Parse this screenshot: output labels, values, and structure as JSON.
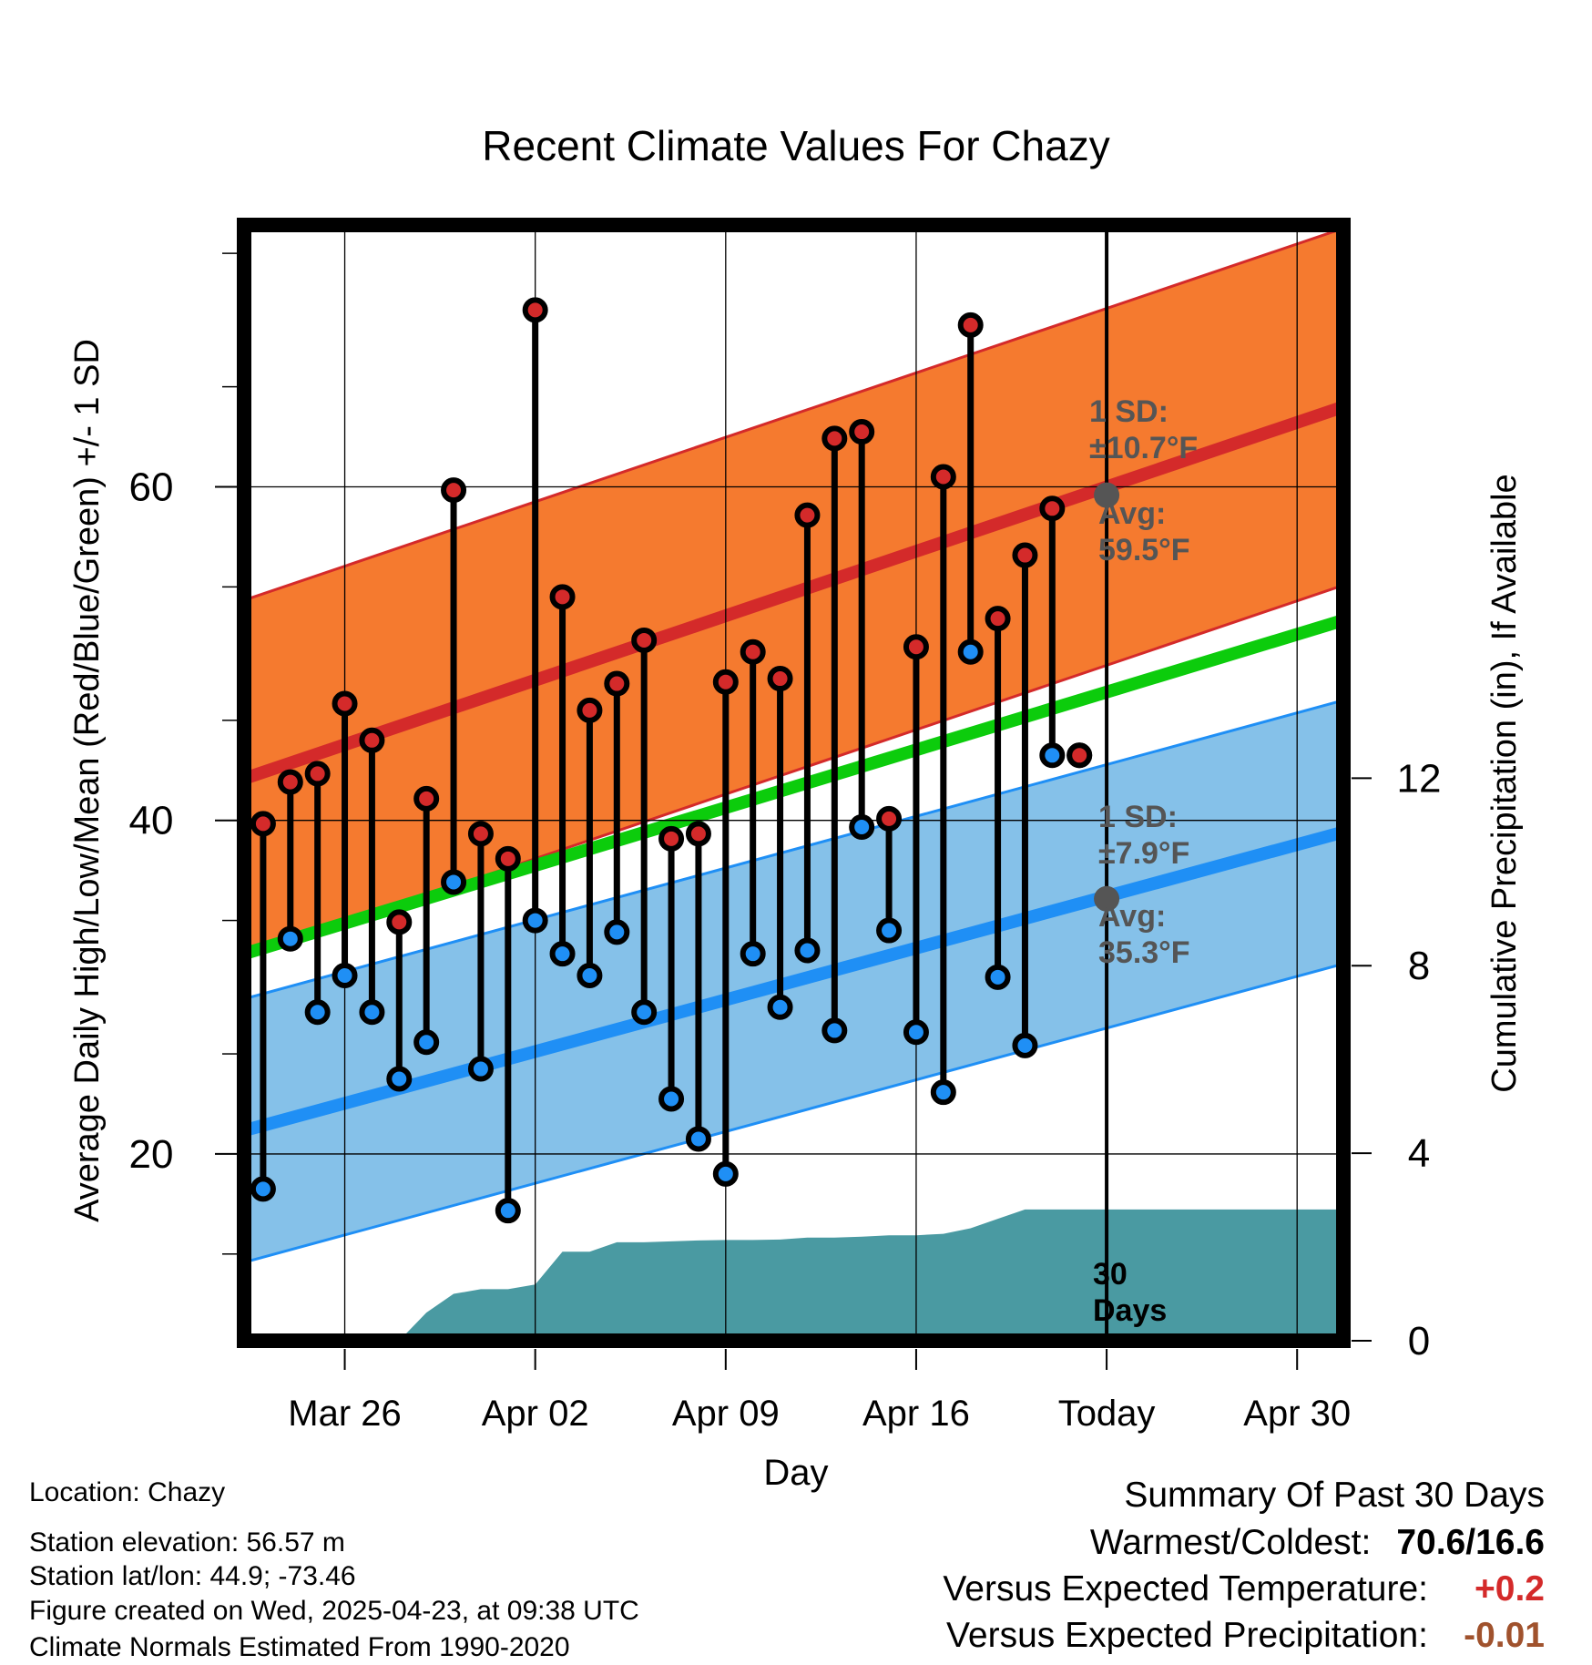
{
  "chart_data": {
    "type": "line",
    "title": "Recent Climate Values For Chazy",
    "xlabel": "Day",
    "ylabel": "Average Daily High/Low/Mean (Red/Blue/Green) +/- 1 SD",
    "y2label": "Cumulative Precipitation (in), If Available",
    "x_tick_labels": [
      "Mar 26",
      "Apr 02",
      "Apr 09",
      "Apr 16",
      "Today",
      "Apr 30"
    ],
    "x_tick_days": [
      3,
      10,
      17,
      24,
      31,
      38
    ],
    "y_ticks": [
      20,
      40,
      60
    ],
    "y2_ticks": [
      0,
      4,
      8,
      12
    ],
    "ylim": [
      8.8,
      75.7
    ],
    "y2lim": [
      0,
      23.8
    ],
    "xlim": [
      -0.7,
      39.7
    ],
    "today_day": 31,
    "period_label": "30 Days",
    "normals": {
      "high_mean": {
        "day_start": -0.7,
        "day_end": 39.7,
        "start": 42.5,
        "end": 64.8
      },
      "high_sd": 10.7,
      "low_mean": {
        "day_start": -0.7,
        "day_end": 39.7,
        "start": 21.4,
        "end": 39.3
      },
      "low_sd": 7.9,
      "mean": {
        "day_start": -0.7,
        "day_end": 39.7,
        "start": 32.0,
        "end": 52.0
      }
    },
    "annotations": {
      "high_sd": "1 SD:\n±10.7°F",
      "high_avg": "Avg:\n59.5°F",
      "low_sd": "1 SD:\n±7.9°F",
      "low_avg": "Avg:\n35.3°F"
    },
    "today_markers": {
      "high": 59.5,
      "low": 35.3
    },
    "days": [
      0,
      1,
      2,
      3,
      4,
      5,
      6,
      7,
      8,
      9,
      10,
      11,
      12,
      13,
      14,
      15,
      16,
      17,
      18,
      19,
      20,
      21,
      22,
      23,
      24,
      25,
      26,
      27,
      28,
      29,
      30
    ],
    "highs": [
      39.8,
      42.3,
      42.8,
      47.0,
      44.8,
      33.9,
      41.3,
      59.8,
      39.2,
      37.7,
      70.6,
      53.4,
      46.6,
      48.2,
      50.8,
      38.9,
      39.2,
      48.3,
      50.1,
      48.5,
      58.3,
      62.9,
      63.3,
      40.1,
      50.4,
      60.6,
      69.7,
      52.1,
      55.9,
      58.7,
      43.9
    ],
    "lows": [
      17.9,
      32.9,
      28.5,
      30.7,
      28.5,
      24.5,
      26.7,
      36.3,
      25.1,
      16.6,
      34.0,
      32.0,
      30.7,
      33.3,
      28.5,
      23.3,
      20.9,
      18.8,
      32.0,
      28.8,
      32.2,
      27.4,
      39.6,
      33.4,
      27.3,
      23.7,
      50.1,
      30.6,
      26.5,
      43.9,
      43.9
    ],
    "precip_days": [
      0,
      1,
      2,
      3,
      4,
      5,
      6,
      7,
      8,
      9,
      10,
      11,
      12,
      13,
      14,
      15,
      16,
      17,
      18,
      19,
      20,
      21,
      22,
      23,
      24,
      25,
      26,
      27,
      28,
      29,
      30,
      39.7
    ],
    "precip_cumulative": [
      0,
      0,
      0,
      0,
      0,
      0,
      0.6,
      1.0,
      1.1,
      1.1,
      1.2,
      1.9,
      1.9,
      2.1,
      2.1,
      2.12,
      2.14,
      2.15,
      2.15,
      2.16,
      2.2,
      2.2,
      2.22,
      2.25,
      2.25,
      2.28,
      2.4,
      2.6,
      2.8,
      2.8,
      2.8,
      2.8
    ]
  },
  "colors": {
    "high_band": "#f57a2f",
    "high_line": "#d42a2a",
    "low_band": "#85c1e9",
    "low_line": "#1f8ff5",
    "mean_line": "#0ccc0c",
    "precip": "#4a9aa2",
    "annotation": "#555555",
    "dot_high": "#d42a2a",
    "dot_low": "#1f8ff5",
    "positive": "#d42a2a",
    "negative": "#a0522d"
  },
  "meta": {
    "location": "Location: Chazy",
    "elevation": "Station elevation: 56.57 m",
    "latlon": "Station lat/lon: 44.9; -73.46",
    "created": "Figure created on Wed, 2025-04-23, at 09:38 UTC",
    "normals": "Climate Normals Estimated From 1990-2020"
  },
  "summary": {
    "title": "Summary Of Past 30 Days",
    "warm_cold_label": "Warmest/Coldest:",
    "warm_cold_value": "70.6/16.6",
    "temp_label": "Versus Expected Temperature:",
    "temp_value": "+0.2",
    "precip_label": "Versus Expected Precipitation:",
    "precip_value": "-0.01"
  }
}
